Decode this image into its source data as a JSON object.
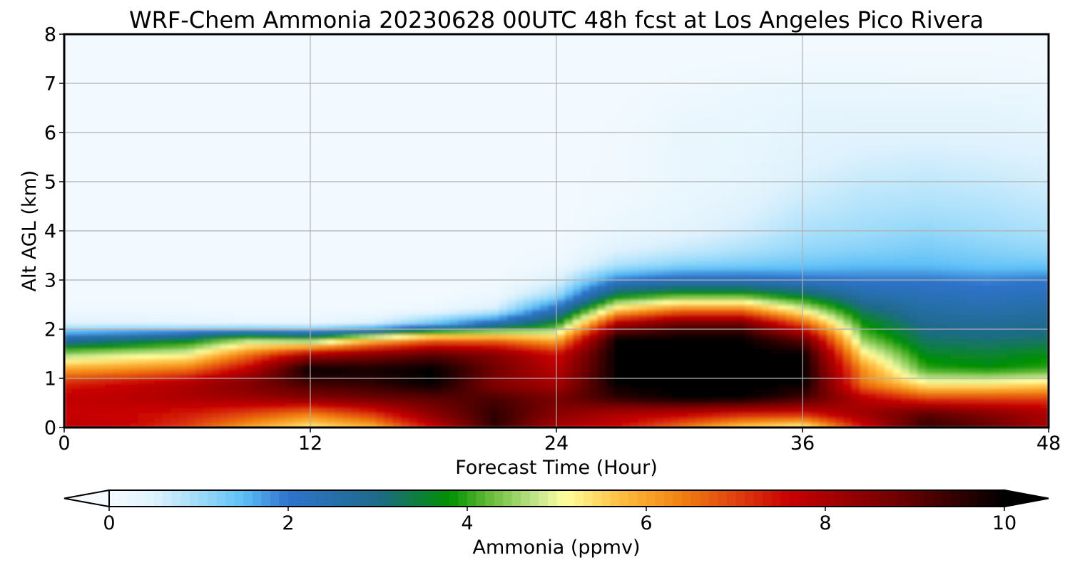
{
  "chart_data": {
    "type": "heatmap",
    "title": "WRF-Chem Ammonia  20230628 00UTC 48h fcst at Los Angeles Pico Rivera",
    "xlabel": "Forecast Time (Hour)",
    "ylabel": "Alt AGL (km)",
    "xlim": [
      0,
      48
    ],
    "ylim": [
      0,
      8
    ],
    "xticks": [
      "0",
      "12",
      "24",
      "36",
      "48"
    ],
    "yticks": [
      "0",
      "1",
      "2",
      "3",
      "4",
      "5",
      "6",
      "7",
      "8"
    ],
    "grid": true,
    "colorbar": {
      "label": "Ammonia  (ppmv)",
      "range": [
        0,
        10
      ],
      "ticks": [
        "0",
        "2",
        "4",
        "6",
        "8",
        "10"
      ],
      "extend": "both",
      "colors": [
        "#f5fbff",
        "#dff2fd",
        "#9fdcfa",
        "#5cbff6",
        "#2f73cc",
        "#1e6a8a",
        "#009000",
        "#70c040",
        "#c8e890",
        "#ffff9e",
        "#ffc040",
        "#f08010",
        "#e04010",
        "#c80000",
        "#700000",
        "#000000"
      ],
      "stops": [
        0,
        0.5,
        1.0,
        1.5,
        2.0,
        3.0,
        3.8,
        4.3,
        4.8,
        5.1,
        5.7,
        6.4,
        7.0,
        7.6,
        8.8,
        10.0
      ]
    },
    "times": [
      0,
      3,
      6,
      9,
      12,
      15,
      18,
      21,
      24,
      27,
      30,
      33,
      36,
      39,
      42,
      45,
      48
    ],
    "altitudes_km": [
      0,
      0.3,
      0.6,
      0.9,
      1.2,
      1.5,
      1.8,
      2.1,
      2.4,
      2.7,
      3.0,
      3.3,
      3.6,
      4.0,
      4.5,
      5.0,
      5.5,
      6.0,
      6.5,
      7.0,
      7.5,
      8.0
    ],
    "values": [
      [
        7.8,
        7.6,
        7.0,
        6.0,
        5.2,
        5.8,
        7.6,
        9.5,
        8.0,
        7.5,
        6.5,
        5.5,
        5.0,
        7.5,
        9.5,
        9.0,
        8.0
      ],
      [
        7.6,
        7.6,
        7.4,
        7.0,
        6.5,
        7.2,
        8.5,
        9.5,
        8.5,
        8.0,
        7.8,
        7.5,
        7.5,
        8.2,
        9.0,
        8.5,
        8.0
      ],
      [
        7.7,
        7.8,
        8.0,
        8.2,
        8.5,
        8.8,
        9.0,
        9.2,
        8.7,
        9.5,
        10.0,
        10.0,
        9.3,
        7.8,
        7.0,
        7.0,
        7.0
      ],
      [
        7.3,
        7.6,
        8.0,
        8.6,
        9.3,
        9.5,
        10.0,
        8.5,
        8.0,
        10.0,
        10.0,
        10.0,
        10.0,
        6.5,
        5.2,
        5.2,
        5.4
      ],
      [
        6.0,
        6.2,
        6.5,
        7.8,
        10.0,
        9.8,
        10.0,
        8.8,
        7.8,
        10.0,
        10.0,
        10.0,
        10.0,
        6.2,
        4.0,
        3.8,
        4.0
      ],
      [
        4.5,
        4.8,
        5.0,
        6.5,
        8.0,
        8.5,
        9.0,
        8.5,
        7.5,
        10.0,
        10.0,
        10.0,
        10.0,
        5.3,
        3.6,
        3.5,
        3.7
      ],
      [
        2.6,
        3.0,
        3.5,
        4.5,
        4.0,
        5.5,
        6.5,
        6.5,
        5.8,
        10.0,
        10.0,
        10.0,
        9.0,
        4.4,
        3.2,
        3.1,
        3.2
      ],
      [
        0.5,
        0.5,
        0.4,
        0.3,
        0.3,
        0.6,
        1.5,
        2.5,
        3.8,
        8.2,
        9.0,
        9.0,
        7.0,
        3.8,
        2.9,
        2.8,
        2.9
      ],
      [
        0.15,
        0.15,
        0.12,
        0.1,
        0.1,
        0.1,
        0.2,
        0.6,
        2.3,
        5.6,
        6.5,
        6.5,
        5.0,
        3.2,
        2.6,
        2.5,
        2.6
      ],
      [
        0.05,
        0.05,
        0.05,
        0.05,
        0.05,
        0.05,
        0.05,
        0.2,
        1.0,
        3.5,
        4.0,
        4.0,
        3.4,
        2.5,
        2.3,
        2.2,
        2.3
      ],
      [
        0.05,
        0.05,
        0.05,
        0.05,
        0.05,
        0.05,
        0.05,
        0.1,
        0.5,
        2.0,
        2.3,
        2.3,
        2.1,
        2.0,
        2.0,
        1.9,
        2.0
      ],
      [
        0.05,
        0.05,
        0.05,
        0.05,
        0.05,
        0.05,
        0.05,
        0.05,
        0.2,
        0.9,
        1.2,
        1.3,
        1.4,
        1.5,
        1.5,
        1.4,
        1.4
      ],
      [
        0.05,
        0.05,
        0.05,
        0.05,
        0.05,
        0.05,
        0.05,
        0.05,
        0.1,
        0.5,
        0.7,
        0.9,
        1.1,
        1.2,
        1.3,
        1.2,
        1.1
      ],
      [
        0.05,
        0.05,
        0.05,
        0.05,
        0.05,
        0.05,
        0.05,
        0.05,
        0.05,
        0.25,
        0.4,
        0.6,
        0.9,
        1.0,
        1.1,
        1.0,
        0.9
      ],
      [
        0.05,
        0.05,
        0.05,
        0.05,
        0.05,
        0.05,
        0.05,
        0.05,
        0.05,
        0.15,
        0.3,
        0.45,
        0.7,
        0.85,
        0.9,
        0.85,
        0.75
      ],
      [
        0.05,
        0.05,
        0.05,
        0.05,
        0.05,
        0.05,
        0.05,
        0.05,
        0.05,
        0.12,
        0.25,
        0.35,
        0.55,
        0.7,
        0.75,
        0.7,
        0.6
      ],
      [
        0.05,
        0.05,
        0.05,
        0.05,
        0.05,
        0.05,
        0.05,
        0.05,
        0.05,
        0.1,
        0.25,
        0.3,
        0.45,
        0.55,
        0.6,
        0.55,
        0.5
      ],
      [
        0.05,
        0.05,
        0.05,
        0.05,
        0.05,
        0.05,
        0.05,
        0.05,
        0.05,
        0.1,
        0.28,
        0.3,
        0.4,
        0.45,
        0.45,
        0.45,
        0.4
      ],
      [
        0.05,
        0.05,
        0.05,
        0.05,
        0.05,
        0.05,
        0.05,
        0.05,
        0.05,
        0.08,
        0.2,
        0.25,
        0.35,
        0.35,
        0.35,
        0.35,
        0.3
      ],
      [
        0.05,
        0.05,
        0.05,
        0.05,
        0.05,
        0.05,
        0.05,
        0.05,
        0.05,
        0.05,
        0.12,
        0.2,
        0.25,
        0.25,
        0.22,
        0.2,
        0.18
      ],
      [
        0.05,
        0.05,
        0.05,
        0.05,
        0.05,
        0.05,
        0.05,
        0.05,
        0.05,
        0.05,
        0.05,
        0.08,
        0.1,
        0.1,
        0.1,
        0.1,
        0.08
      ],
      [
        0.05,
        0.05,
        0.05,
        0.05,
        0.05,
        0.05,
        0.05,
        0.05,
        0.05,
        0.05,
        0.05,
        0.05,
        0.05,
        0.05,
        0.05,
        0.05,
        0.05
      ]
    ]
  }
}
